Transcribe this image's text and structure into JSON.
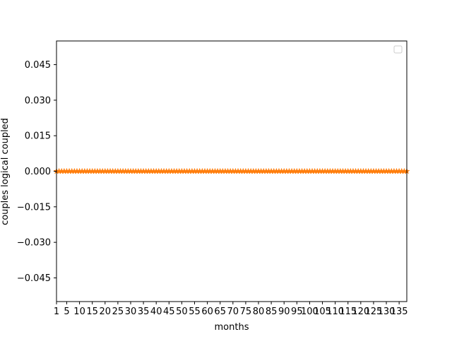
{
  "chart_data": {
    "type": "line",
    "title": "",
    "xlabel": "months",
    "ylabel": "couples logical coupled",
    "xlim": [
      1,
      138
    ],
    "ylim": [
      -0.055,
      0.055
    ],
    "x_ticks": [
      1,
      5,
      10,
      15,
      20,
      25,
      30,
      35,
      40,
      45,
      50,
      55,
      60,
      65,
      70,
      75,
      80,
      85,
      90,
      95,
      100,
      105,
      110,
      115,
      120,
      125,
      130,
      135
    ],
    "y_ticks": [
      -0.045,
      -0.03,
      -0.015,
      0.0,
      0.015,
      0.03,
      0.045
    ],
    "y_tick_labels": [
      "−0.045",
      "−0.030",
      "−0.015",
      "0.000",
      "0.015",
      "0.030",
      "0.045"
    ],
    "legend": {
      "position": "top-right",
      "entries": []
    },
    "grid": false,
    "series": [
      {
        "color": "#ff7f0e",
        "marker": "star",
        "x_start": 1,
        "x_end": 138,
        "value": 0
      }
    ]
  }
}
